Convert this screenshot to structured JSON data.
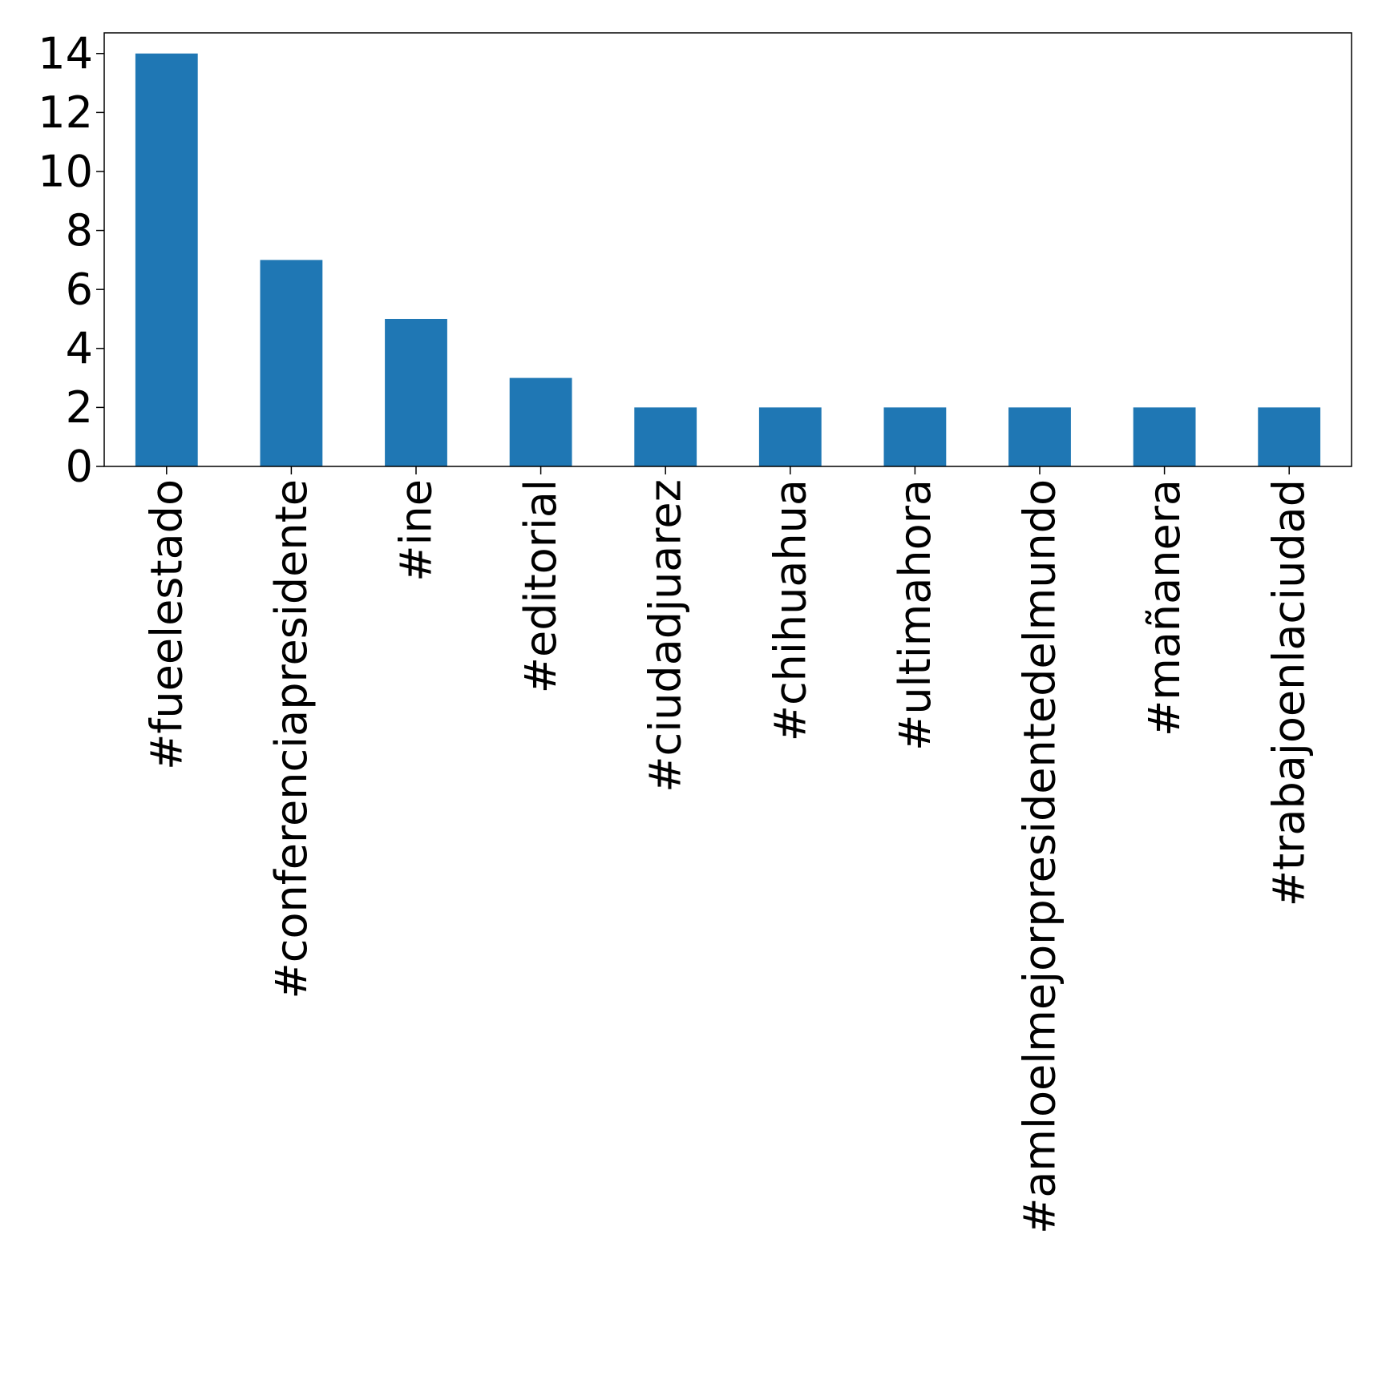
{
  "chart_data": {
    "type": "bar",
    "title": "",
    "xlabel": "",
    "ylabel": "",
    "categories": [
      "#fueelestado",
      "#conferenciapresidente",
      "#ine",
      "#editorial",
      "#ciudadjuarez",
      "#chihuahua",
      "#ultimahora",
      "#amloelmejorpresidentedelmundo",
      "#mañanera",
      "#trabajoenlaciudad"
    ],
    "values": [
      14,
      7,
      5,
      3,
      2,
      2,
      2,
      2,
      2,
      2
    ],
    "ylim": [
      0,
      14.7
    ],
    "yticks": [
      0,
      2,
      4,
      6,
      8,
      10,
      12,
      14
    ],
    "bar_color": "#1f77b4",
    "grid": false,
    "legend": "none"
  }
}
